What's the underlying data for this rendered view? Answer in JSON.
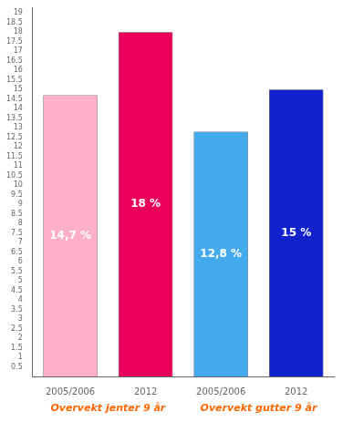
{
  "chart_data": {
    "type": "bar",
    "categories": [
      "2005/2006",
      "2012",
      "2005/2006",
      "2012"
    ],
    "values": [
      14.7,
      18.0,
      12.8,
      15.0
    ],
    "value_labels": [
      "14,7 %",
      "18 %",
      "12,8 %",
      "15 %"
    ],
    "data_labels": true,
    "colors": [
      "#FFB0C8",
      "#E8005A",
      "#44AAEE",
      "#1122CC"
    ],
    "ylim": [
      0,
      19.3
    ],
    "yticks": [
      0.5,
      1,
      1.5,
      2,
      2.5,
      3,
      3.5,
      4,
      4.5,
      5,
      5.5,
      6,
      6.5,
      7,
      7.5,
      8,
      8.5,
      9,
      9.5,
      10,
      10.5,
      11,
      11.5,
      12,
      12.5,
      13,
      13.5,
      14,
      14.5,
      15,
      15.5,
      16,
      16.5,
      17,
      17.5,
      18,
      18.5,
      19
    ],
    "grid": false,
    "annotations": [
      {
        "text": "Overvekt jenter 9 år",
        "color": "#FF6600"
      },
      {
        "text": "Overvekt gutter 9 år",
        "color": "#FF6600"
      }
    ]
  }
}
